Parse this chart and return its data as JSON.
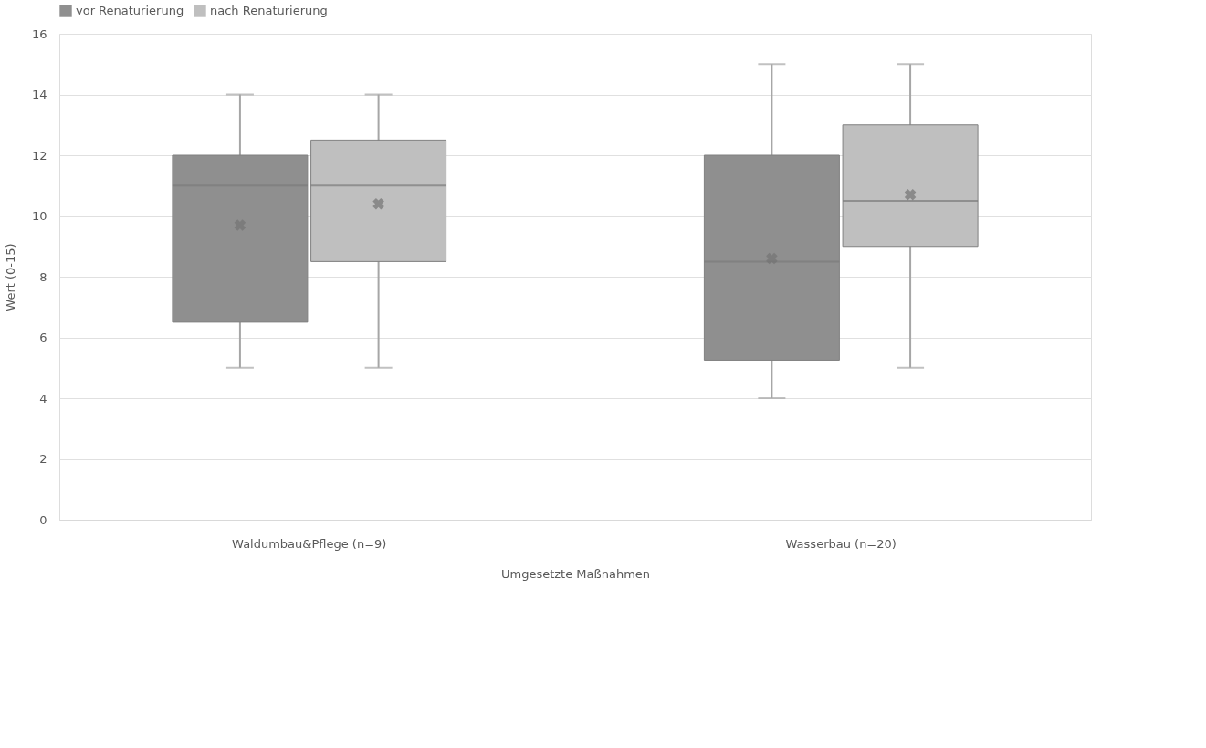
{
  "chart_data": {
    "type": "box",
    "xlabel": "Umgesetzte Maßnahmen",
    "ylabel": "Wert (0-15)",
    "categories": [
      "Waldumbau&Pflege (n=9)",
      "Wasserbau (n=20)"
    ],
    "series": [
      {
        "name": "vor Renaturierung",
        "color": "#8f8f8f",
        "boxes": [
          {
            "low": 5,
            "q1": 6.5,
            "median": 11,
            "q3": 12,
            "high": 14,
            "mean": 9.7
          },
          {
            "low": 4,
            "q1": 5.25,
            "median": 8.5,
            "q3": 12,
            "high": 15,
            "mean": 8.6
          }
        ]
      },
      {
        "name": "nach Renaturierung",
        "color": "#bfbfbf",
        "boxes": [
          {
            "low": 5,
            "q1": 8.5,
            "median": 11,
            "q3": 12.5,
            "high": 14,
            "mean": 10.4
          },
          {
            "low": 5,
            "q1": 9,
            "median": 10.5,
            "q3": 13,
            "high": 15,
            "mean": 10.7
          }
        ]
      }
    ],
    "ylim": [
      0,
      16
    ],
    "yticks": [
      0,
      2,
      4,
      6,
      8,
      10,
      12,
      14,
      16
    ],
    "grid": "y",
    "legend": "top"
  }
}
